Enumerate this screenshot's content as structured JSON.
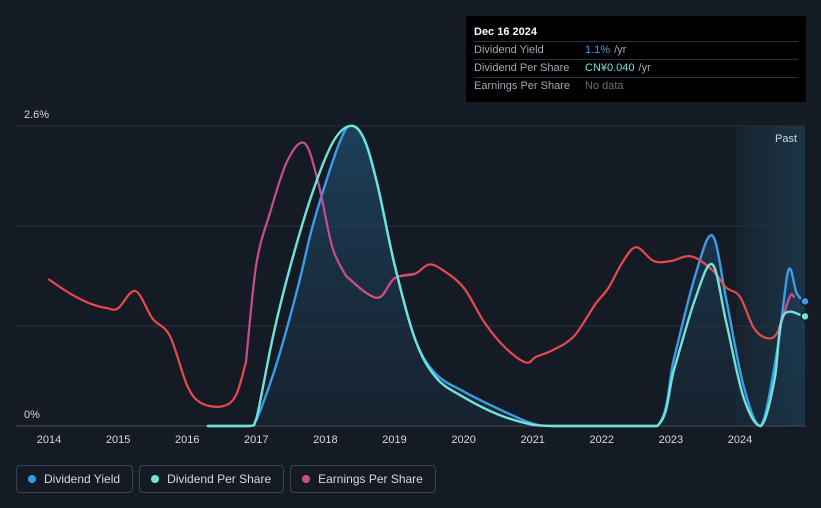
{
  "chart_data": {
    "type": "line",
    "title": "",
    "xlabel": "",
    "ylabel": "",
    "ylim": [
      0,
      2.6
    ],
    "y_ticks": [
      "2.6%",
      "0%"
    ],
    "x_ticks": [
      2014,
      2015,
      2016,
      2017,
      2018,
      2019,
      2020,
      2021,
      2022,
      2023,
      2024
    ],
    "xlim": [
      2013.5,
      2024.95
    ],
    "past_region_start": 2023.95,
    "past_label": "Past",
    "grid": true,
    "legend_position": "bottom-left",
    "series": [
      {
        "name": "Dividend Yield",
        "key": "yield",
        "color": "#3b9de8",
        "fill": true,
        "points": [
          [
            2016.3,
            0
          ],
          [
            2016.9,
            0
          ],
          [
            2017.0,
            0.05
          ],
          [
            2017.3,
            0.55
          ],
          [
            2017.6,
            1.2
          ],
          [
            2017.8,
            1.7
          ],
          [
            2018.0,
            2.1
          ],
          [
            2018.2,
            2.45
          ],
          [
            2018.35,
            2.6
          ],
          [
            2018.55,
            2.5
          ],
          [
            2018.75,
            2.1
          ],
          [
            2019.0,
            1.4
          ],
          [
            2019.3,
            0.75
          ],
          [
            2019.6,
            0.45
          ],
          [
            2020.0,
            0.3
          ],
          [
            2020.5,
            0.15
          ],
          [
            2021.0,
            0.02
          ],
          [
            2021.3,
            0
          ],
          [
            2022.0,
            0
          ],
          [
            2022.8,
            0
          ],
          [
            2023.05,
            0.6
          ],
          [
            2023.35,
            1.3
          ],
          [
            2023.6,
            1.65
          ],
          [
            2023.8,
            1.1
          ],
          [
            2024.05,
            0.35
          ],
          [
            2024.3,
            0
          ],
          [
            2024.55,
            0.7
          ],
          [
            2024.7,
            1.35
          ],
          [
            2024.82,
            1.15
          ],
          [
            2024.93,
            1.08
          ]
        ]
      },
      {
        "name": "Dividend Per Share",
        "key": "dps",
        "color": "#6fe3d9",
        "fill": false,
        "points": [
          [
            2016.3,
            0
          ],
          [
            2016.9,
            0
          ],
          [
            2017.0,
            0.06
          ],
          [
            2017.25,
            0.8
          ],
          [
            2017.5,
            1.4
          ],
          [
            2017.8,
            2.0
          ],
          [
            2018.1,
            2.45
          ],
          [
            2018.35,
            2.6
          ],
          [
            2018.55,
            2.5
          ],
          [
            2018.75,
            2.1
          ],
          [
            2019.0,
            1.4
          ],
          [
            2019.3,
            0.75
          ],
          [
            2019.6,
            0.42
          ],
          [
            2020.0,
            0.25
          ],
          [
            2020.5,
            0.1
          ],
          [
            2021.0,
            0.01
          ],
          [
            2021.3,
            0
          ],
          [
            2022.0,
            0
          ],
          [
            2022.8,
            0
          ],
          [
            2023.05,
            0.5
          ],
          [
            2023.35,
            1.1
          ],
          [
            2023.6,
            1.4
          ],
          [
            2023.8,
            0.9
          ],
          [
            2024.05,
            0.25
          ],
          [
            2024.3,
            0
          ],
          [
            2024.5,
            0.4
          ],
          [
            2024.62,
            0.95
          ],
          [
            2024.93,
            0.95
          ]
        ]
      },
      {
        "name": "Earnings Per Share",
        "key": "eps",
        "color": "#c94d8b",
        "past_color": "#e8494f",
        "fill": false,
        "points": [
          [
            2014.0,
            1.27
          ],
          [
            2014.3,
            1.15
          ],
          [
            2014.6,
            1.06
          ],
          [
            2014.85,
            1.02
          ],
          [
            2015.0,
            1.02
          ],
          [
            2015.25,
            1.17
          ],
          [
            2015.5,
            0.93
          ],
          [
            2015.75,
            0.78
          ],
          [
            2016.0,
            0.35
          ],
          [
            2016.2,
            0.2
          ],
          [
            2016.5,
            0.17
          ],
          [
            2016.7,
            0.26
          ],
          [
            2016.85,
            0.55
          ],
          [
            2017.0,
            1.4
          ],
          [
            2017.2,
            1.85
          ],
          [
            2017.45,
            2.3
          ],
          [
            2017.7,
            2.45
          ],
          [
            2017.9,
            2.1
          ],
          [
            2018.1,
            1.55
          ],
          [
            2018.3,
            1.3
          ],
          [
            2018.6,
            1.15
          ],
          [
            2018.8,
            1.12
          ],
          [
            2019.0,
            1.28
          ],
          [
            2019.3,
            1.32
          ],
          [
            2019.5,
            1.4
          ],
          [
            2019.7,
            1.35
          ],
          [
            2020.0,
            1.2
          ],
          [
            2020.3,
            0.9
          ],
          [
            2020.6,
            0.68
          ],
          [
            2020.9,
            0.55
          ],
          [
            2021.05,
            0.6
          ],
          [
            2021.3,
            0.66
          ],
          [
            2021.6,
            0.78
          ],
          [
            2021.9,
            1.05
          ],
          [
            2022.1,
            1.2
          ],
          [
            2022.3,
            1.42
          ],
          [
            2022.5,
            1.55
          ],
          [
            2022.75,
            1.43
          ],
          [
            2023.0,
            1.43
          ],
          [
            2023.3,
            1.47
          ],
          [
            2023.6,
            1.35
          ],
          [
            2023.8,
            1.2
          ],
          [
            2024.0,
            1.12
          ],
          [
            2024.2,
            0.85
          ],
          [
            2024.4,
            0.76
          ],
          [
            2024.55,
            0.82
          ],
          [
            2024.72,
            1.12
          ],
          [
            2024.78,
            1.12
          ]
        ]
      }
    ]
  },
  "tooltip": {
    "date": "Dec 16 2024",
    "rows": [
      {
        "label": "Dividend Yield",
        "value": "1.1%",
        "unit": "/yr"
      },
      {
        "label": "Dividend Per Share",
        "value": "CN¥0.040",
        "unit": "/yr"
      },
      {
        "label": "Earnings Per Share",
        "value": "No data",
        "unit": ""
      }
    ]
  },
  "legend": [
    {
      "label": "Dividend Yield",
      "color": "#3b9de8"
    },
    {
      "label": "Dividend Per Share",
      "color": "#6fe3d9"
    },
    {
      "label": "Earnings Per Share",
      "color": "#c94d8b"
    }
  ]
}
